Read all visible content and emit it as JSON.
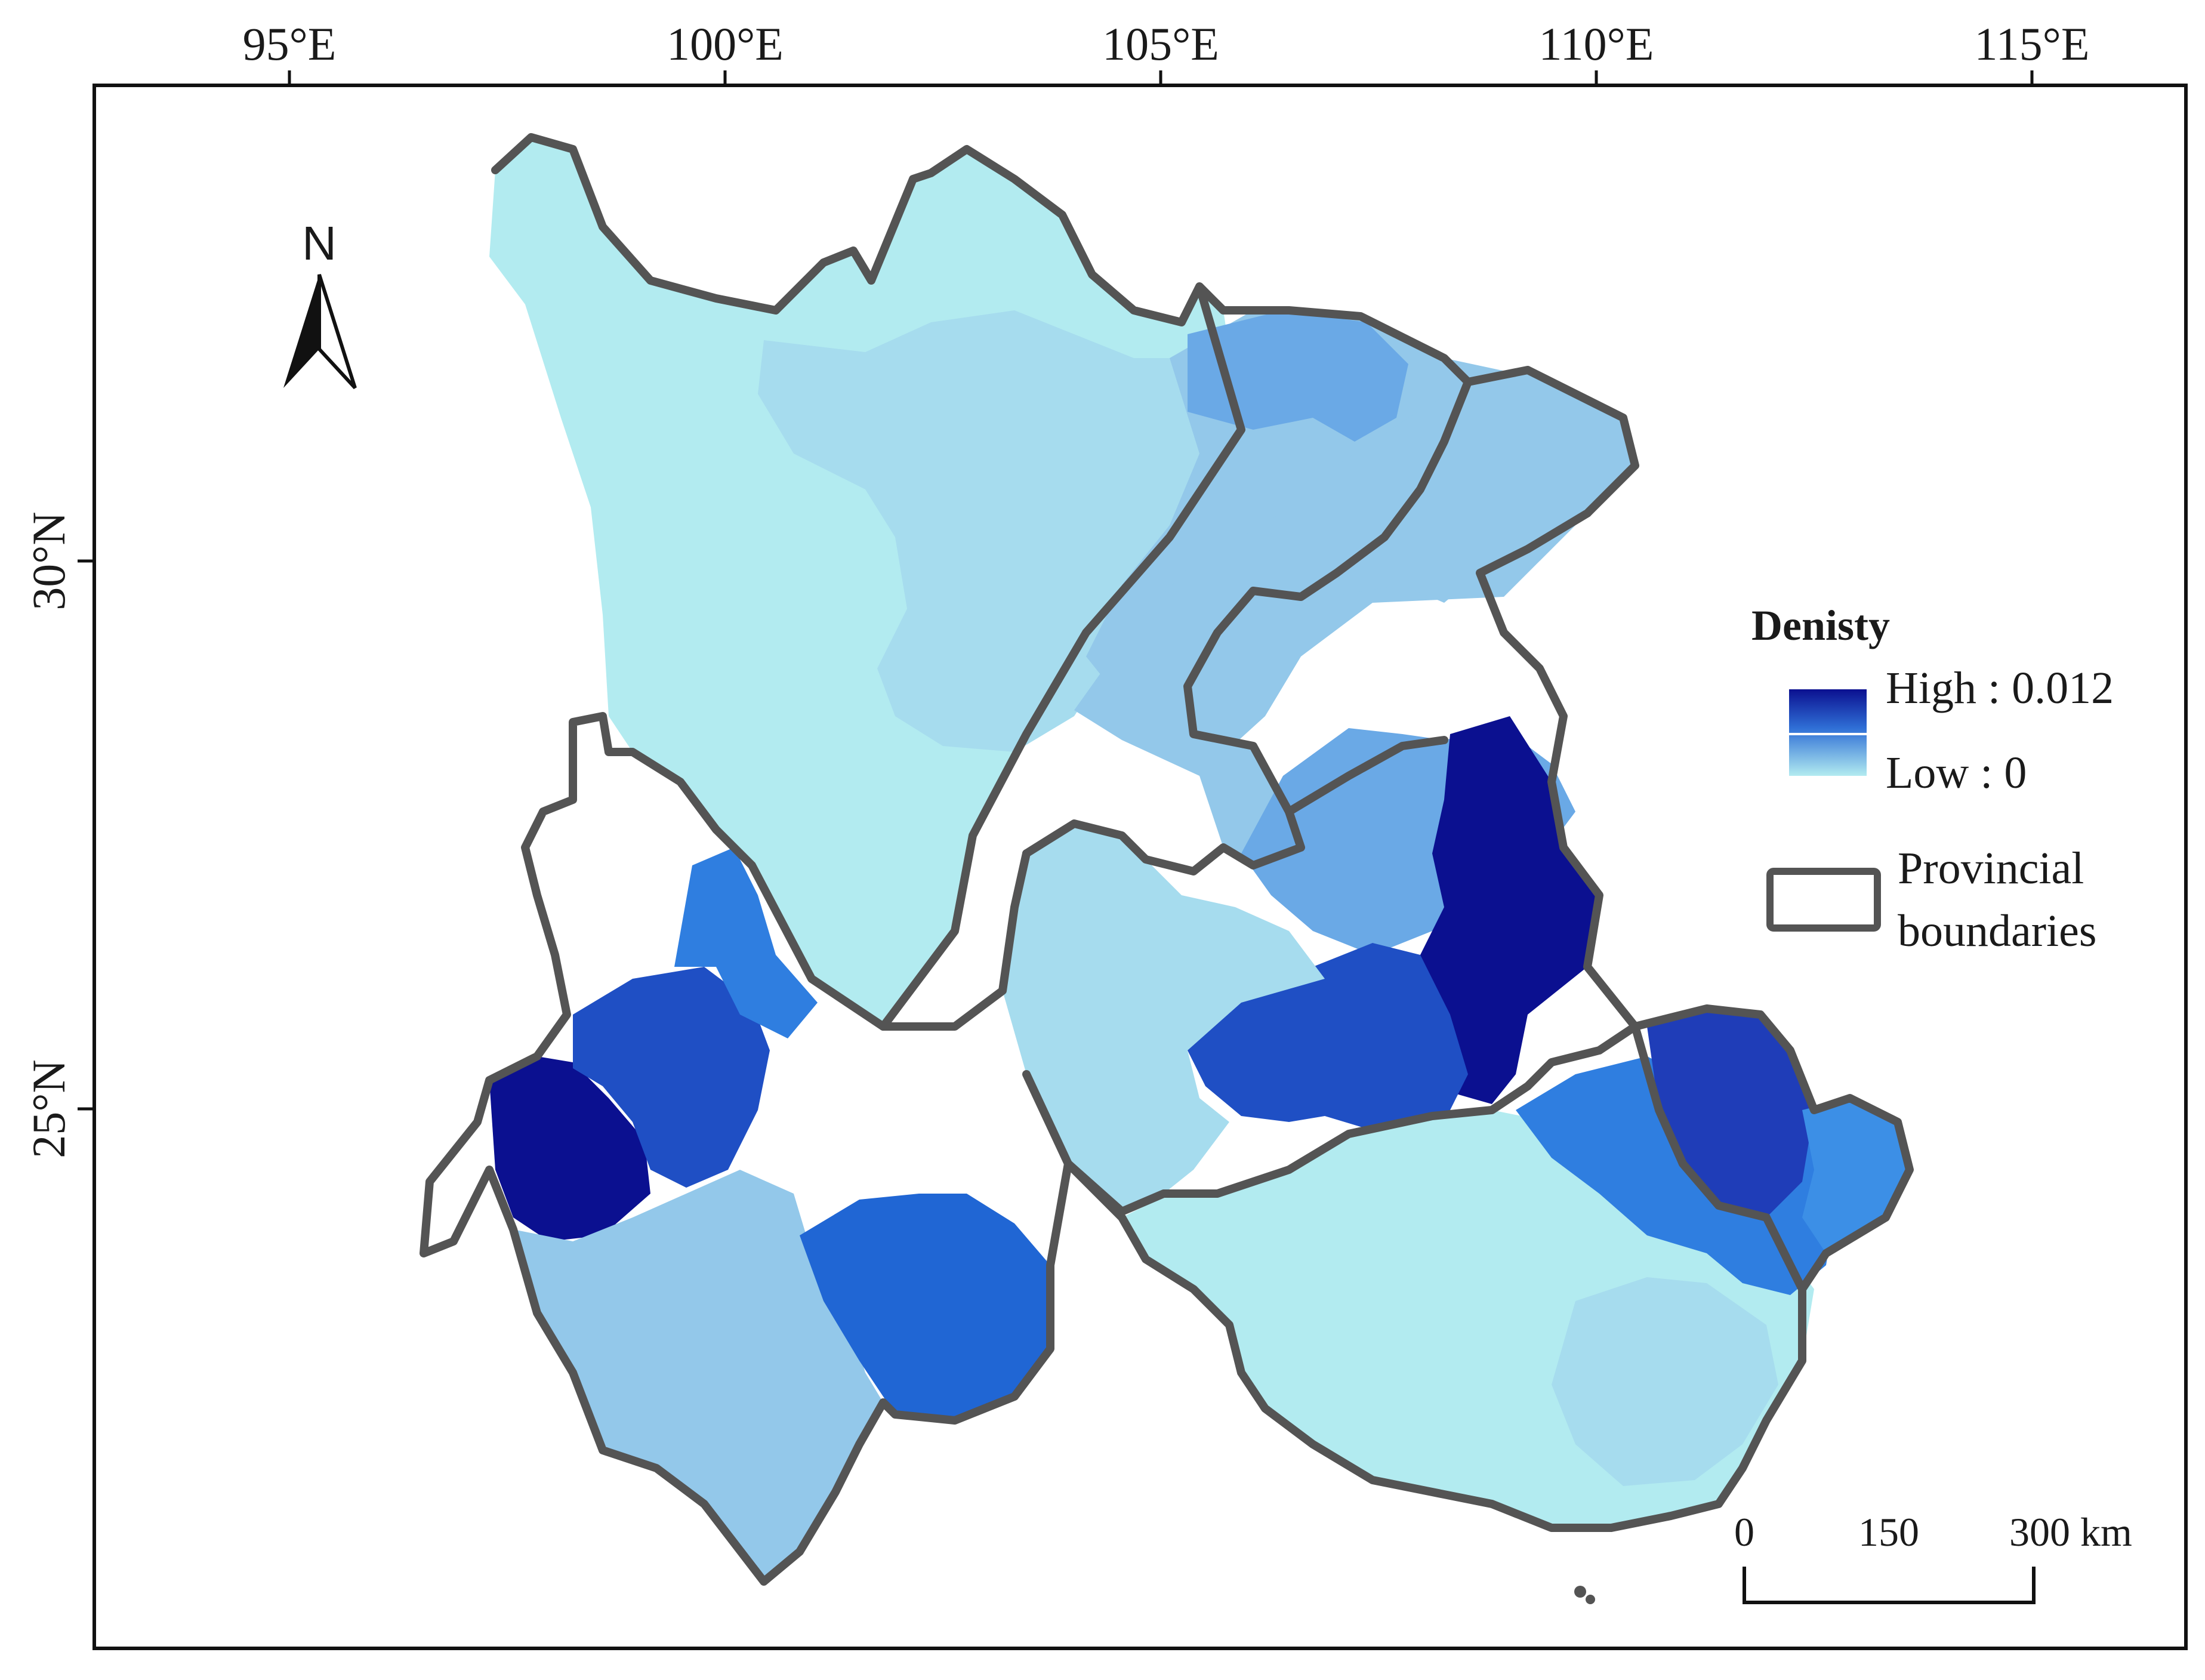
{
  "map": {
    "longitude_labels": [
      "95°E",
      "100°E",
      "105°E",
      "110°E",
      "115°E"
    ],
    "latitude_labels": [
      "30°N",
      "25°N"
    ],
    "north_arrow": {
      "label": "N",
      "icon": "north-arrow-icon"
    },
    "legend": {
      "title": "Denisty",
      "high_label": "High : 0.012",
      "low_label": "Low : 0",
      "boundary_label_line1": "Provincial",
      "boundary_label_line2": "boundaries"
    },
    "scale_bar": {
      "labels": [
        "0",
        "150",
        "300 km"
      ]
    },
    "colors": {
      "lightest": "#b2ebf0",
      "light": "#a6dcee",
      "light_mid": "#93c8ea",
      "mid": "#6aa9e6",
      "strong": "#2f7ee0",
      "deep": "#1f4fc4",
      "deepest": "#0b1090",
      "boundary": "#545454"
    }
  }
}
